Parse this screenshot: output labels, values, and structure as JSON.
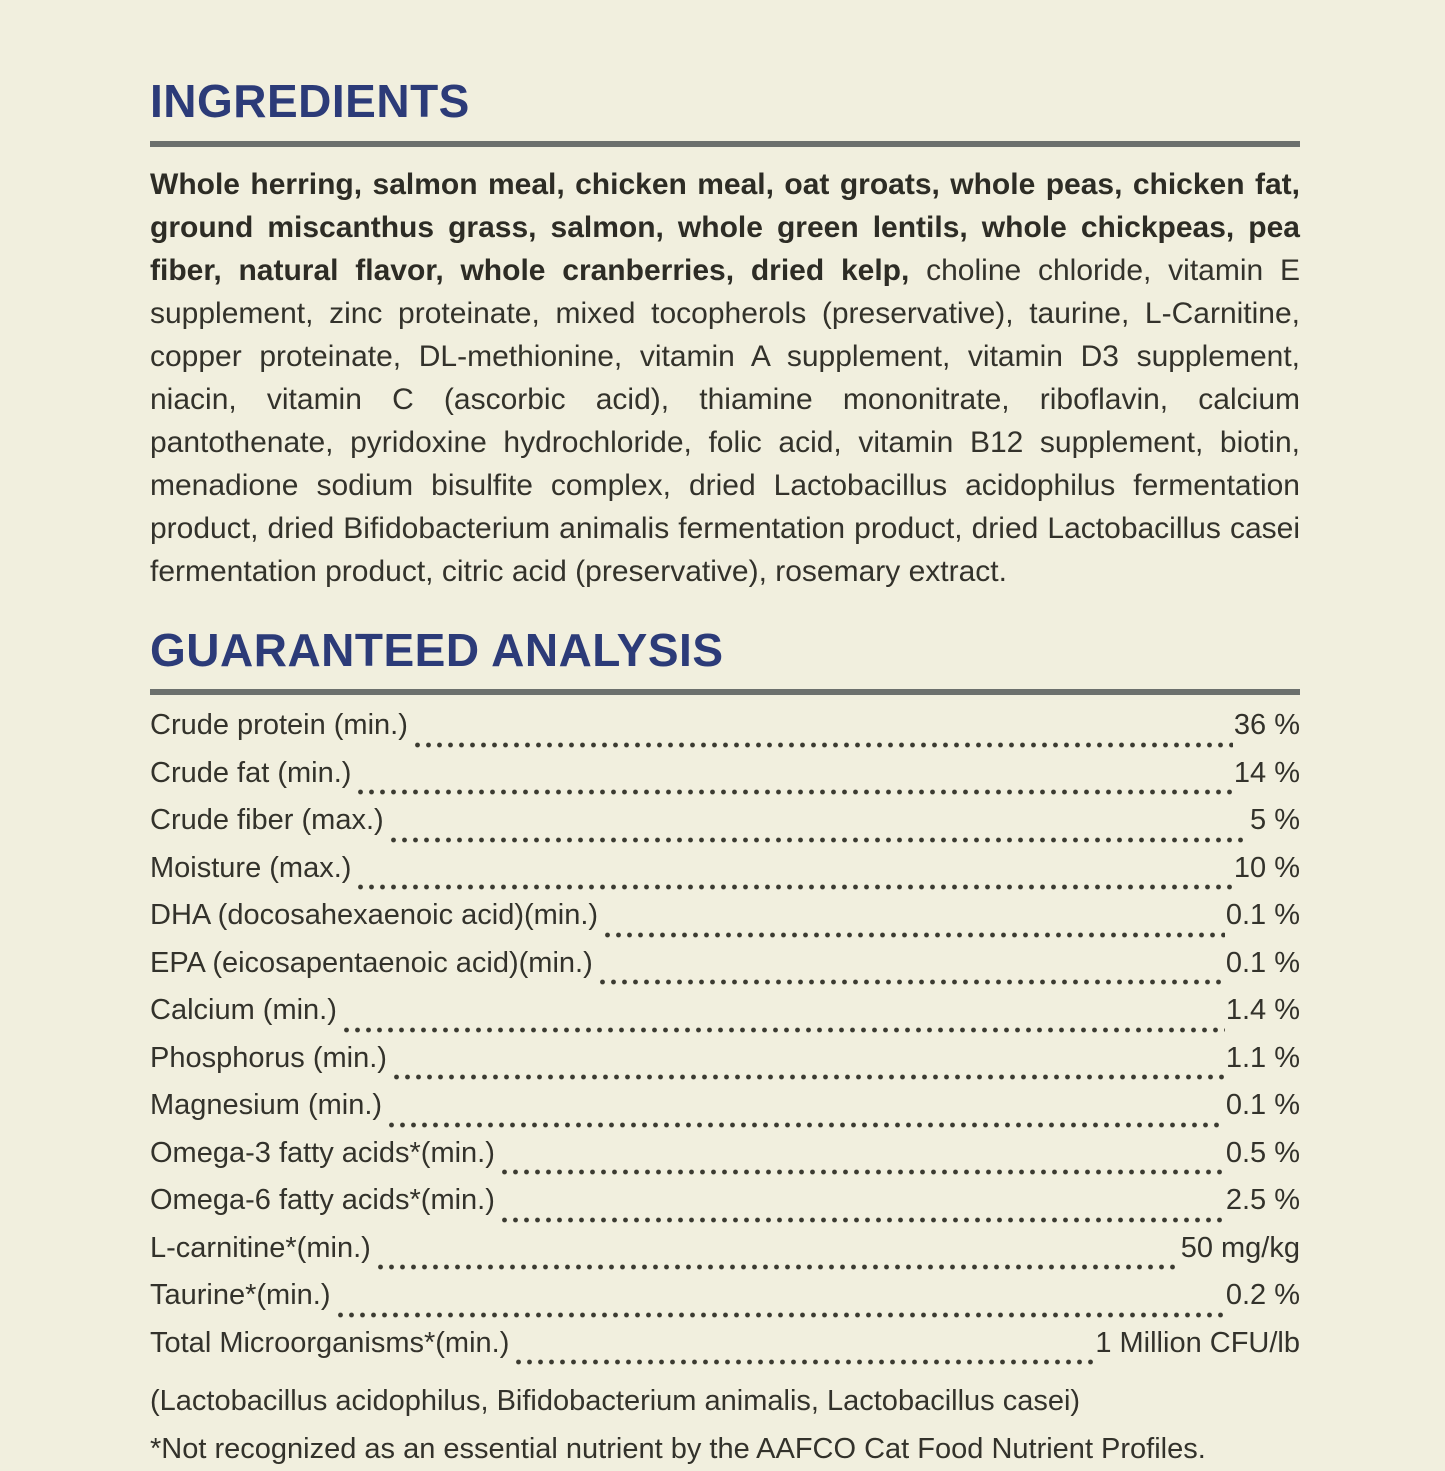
{
  "page": {
    "colors": {
      "background": "#f1efde",
      "heading_navy": "#2c3b78",
      "divider_gray": "#6c706d",
      "body_text": "#33322b"
    }
  },
  "ingredients": {
    "heading": "INGREDIENTS",
    "bold_text": "Whole herring, salmon meal, chicken meal, oat groats, whole peas, chicken fat, ground miscanthus grass, salmon, whole green lentils, whole chickpeas, pea fiber, natural flavor, whole cranberries, dried kelp,",
    "regular_text": " choline chloride, vitamin E supplement, zinc proteinate, mixed tocopherols (preservative), taurine, L-Carnitine, copper proteinate, DL-methionine, vitamin A supplement, vitamin D3 supplement, niacin, vitamin C (ascorbic acid), thiamine mononitrate, riboflavin, calcium pantothenate, pyridoxine hydrochloride, folic acid, vitamin B12 supplement, biotin, menadione sodium bisulfite complex, dried Lactobacillus acidophilus fermentation product, dried Bifidobacterium animalis fermentation product, dried Lactobacillus casei fermentation product, citric acid (preservative), rosemary extract."
  },
  "guaranteed_analysis": {
    "heading": "GUARANTEED ANALYSIS",
    "rows": [
      {
        "label": "Crude protein (min.)",
        "value": "36 %"
      },
      {
        "label": "Crude fat (min.)",
        "value": "14 %"
      },
      {
        "label": "Crude fiber (max.)",
        "value": "5 %"
      },
      {
        "label": "Moisture (max.)",
        "value": "10 %"
      },
      {
        "label": "DHA (docosahexaenoic acid)(min.)",
        "value": "0.1 %"
      },
      {
        "label": "EPA (eicosapentaenoic acid)(min.)",
        "value": "0.1 %"
      },
      {
        "label": "Calcium (min.)",
        "value": "1.4 %"
      },
      {
        "label": "Phosphorus (min.)",
        "value": "1.1 %"
      },
      {
        "label": "Magnesium (min.)",
        "value": "0.1 %"
      },
      {
        "label": "Omega-3 fatty acids*(min.)",
        "value": "0.5 %"
      },
      {
        "label": "Omega-6 fatty acids*(min.)",
        "value": "2.5 %"
      },
      {
        "label": "L-carnitine*(min.)",
        "value": "50 mg/kg"
      },
      {
        "label": "Taurine*(min.)",
        "value": "0.2 %"
      },
      {
        "label": "Total Microorganisms*(min.)",
        "value": "1 Million CFU/lb"
      }
    ],
    "subnote": "(Lactobacillus acidophilus, Bifidobacterium animalis, Lactobacillus casei)",
    "footnote": "*Not recognized as an essential nutrient by the AAFCO Cat Food Nutrient Profiles."
  }
}
